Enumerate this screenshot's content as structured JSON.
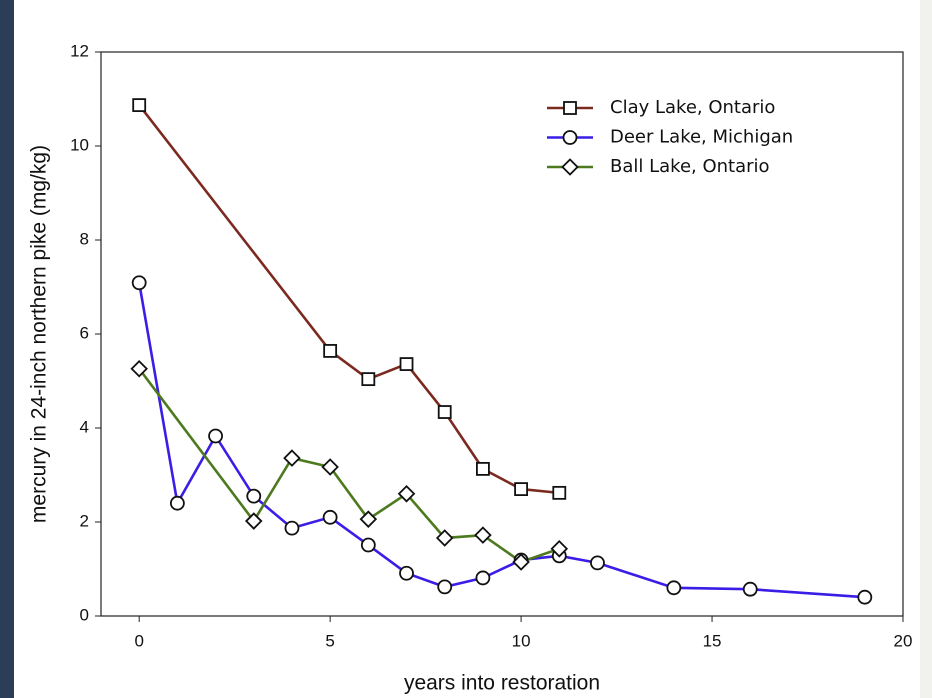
{
  "chart_data": {
    "type": "line",
    "x_label": "years into restoration",
    "y_label": "mercury in 24-inch northern pike (mg/kg)",
    "xlim": [
      -1,
      20
    ],
    "xticks": [
      0,
      5,
      10,
      15,
      20
    ],
    "ylim": [
      0,
      12
    ],
    "yticks": [
      0,
      2,
      4,
      6,
      8,
      10,
      12
    ],
    "legend": "upper right",
    "series": [
      {
        "name": "Clay Lake, Ontario",
        "color": "#7b2a20",
        "marker": "square",
        "x": [
          0,
          5,
          6,
          7,
          8,
          9,
          10,
          11
        ],
        "values": [
          10.87,
          5.64,
          5.04,
          5.36,
          4.34,
          3.13,
          2.7,
          2.62
        ]
      },
      {
        "name": "Deer Lake, Michigan",
        "color": "#3a1ee8",
        "marker": "circle",
        "x": [
          0,
          1,
          2,
          3,
          4,
          5,
          6,
          7,
          8,
          9,
          10,
          11,
          12,
          14,
          16,
          19
        ],
        "values": [
          7.09,
          2.4,
          3.83,
          2.55,
          1.87,
          2.1,
          1.51,
          0.91,
          0.62,
          0.81,
          1.19,
          1.28,
          1.13,
          0.6,
          0.57,
          0.4
        ]
      },
      {
        "name": "Ball Lake, Ontario",
        "color": "#4d7a1e",
        "marker": "diamond",
        "x": [
          0,
          3,
          4,
          5,
          6,
          7,
          8,
          9,
          10,
          11
        ],
        "values": [
          5.26,
          2.02,
          3.36,
          3.17,
          2.06,
          2.6,
          1.66,
          1.72,
          1.15,
          1.43
        ]
      }
    ]
  }
}
